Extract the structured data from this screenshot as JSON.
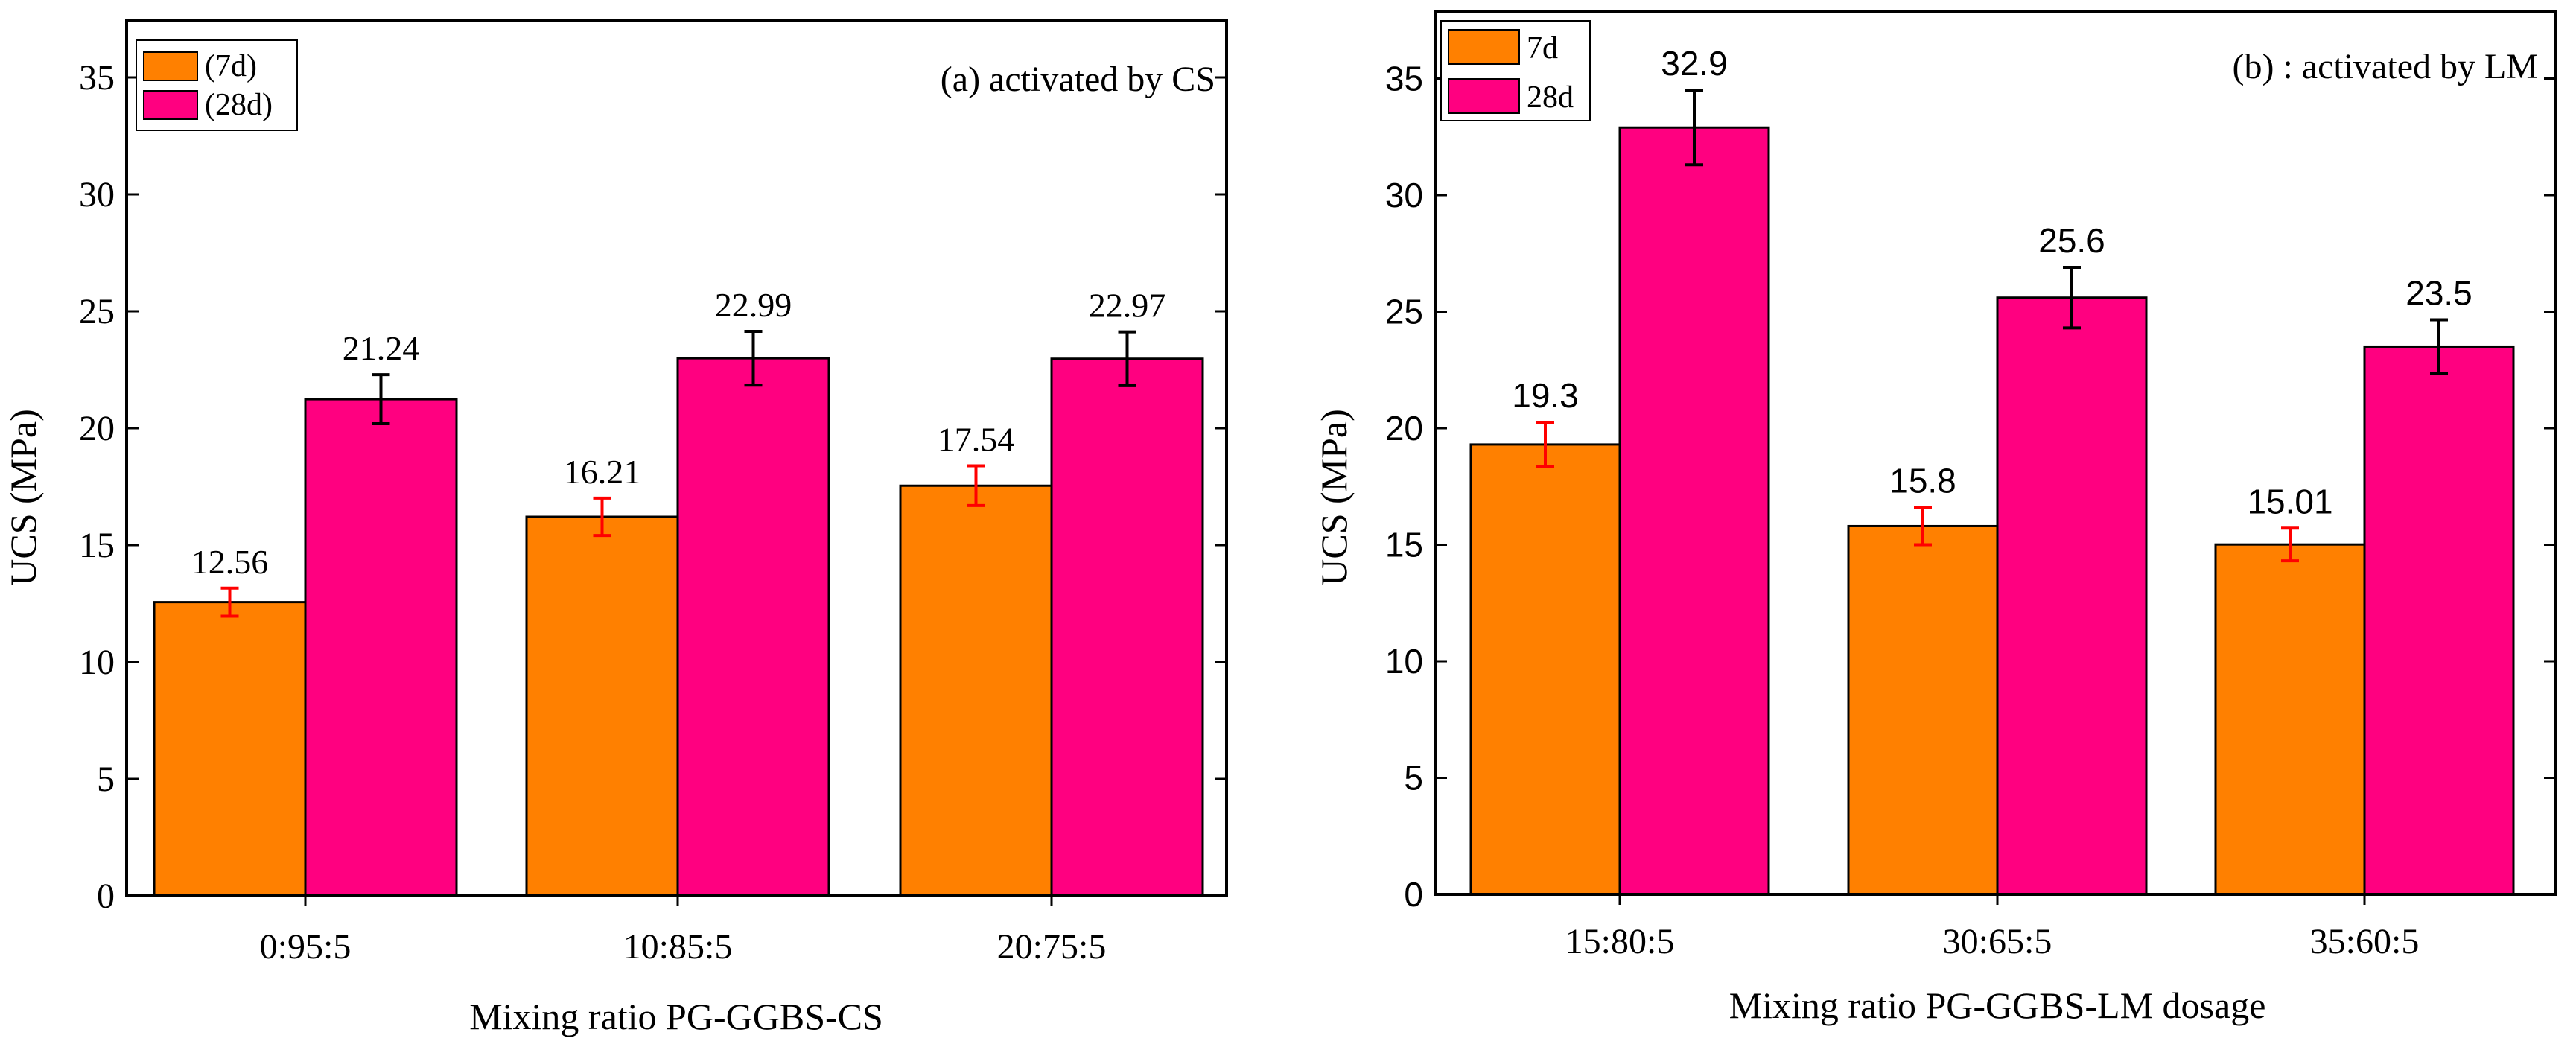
{
  "colors": {
    "series_7d": "#FF8000",
    "series_28d": "#FF0080",
    "err_7d": "#FF0000",
    "err_28d": "#000000",
    "axis": "#000000"
  },
  "chart_data": [
    {
      "type": "bar",
      "panel_label": "(a)  activated by CS",
      "ylabel": "UCS (MPa)",
      "xlabel": "Mixing ratio PG-GGBS-CS",
      "ylim": [
        0,
        37.5
      ],
      "yticks": [
        0,
        5,
        10,
        15,
        20,
        25,
        30,
        35
      ],
      "categories": [
        "0:95:5",
        "10:85:5",
        "20:75:5"
      ],
      "legend_position": "top-left",
      "series": [
        {
          "name": "(7d)",
          "values": [
            12.56,
            16.21,
            17.54
          ],
          "errors": [
            0.6,
            0.8,
            0.85
          ],
          "labels": [
            "12.56",
            "16.21",
            "17.54"
          ]
        },
        {
          "name": "(28d)",
          "values": [
            21.24,
            22.99,
            22.97
          ],
          "errors": [
            1.05,
            1.15,
            1.15
          ],
          "labels": [
            "21.24",
            "22.99",
            "22.97"
          ]
        }
      ]
    },
    {
      "type": "bar",
      "panel_label": "(b) : activated by LM",
      "ylabel": "UCS (MPa)",
      "xlabel": "Mixing ratio PG-GGBS-LM dosage",
      "ylim": [
        0,
        37.5
      ],
      "yticks": [
        0,
        5,
        10,
        15,
        20,
        25,
        30,
        35
      ],
      "categories": [
        "15:80:5",
        "30:65:5",
        "35:60:5"
      ],
      "legend_position": "top-left",
      "series": [
        {
          "name": "7d",
          "values": [
            19.3,
            15.8,
            15.01
          ],
          "errors": [
            0.95,
            0.8,
            0.7
          ],
          "labels": [
            "19.3",
            "15.8",
            "15.01"
          ]
        },
        {
          "name": "28d",
          "values": [
            32.9,
            25.6,
            23.5
          ],
          "errors": [
            1.6,
            1.3,
            1.15
          ],
          "labels": [
            "32.9",
            "25.6",
            "23.5"
          ]
        }
      ]
    }
  ]
}
